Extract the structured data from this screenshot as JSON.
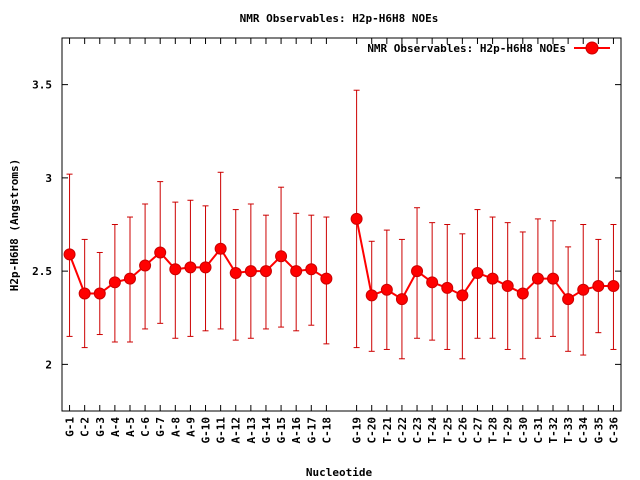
{
  "chart_data": {
    "type": "line",
    "title": "NMR Observables: H2p-H6H8 NOEs",
    "xlabel": "Nucleotide",
    "ylabel": "H2p-H6H8 (Angstroms)",
    "ylim": [
      1.75,
      3.75
    ],
    "yticks": [
      2,
      2.5,
      3,
      3.5
    ],
    "ytick_labels": [
      "2",
      "2.5",
      "3",
      "3.5"
    ],
    "grid": false,
    "legend_position": "top-right",
    "series_color": "#ff0000",
    "errorbar_color": "#cc0000",
    "categories": [
      "G-1",
      "C-2",
      "G-3",
      "A-4",
      "A-5",
      "C-6",
      "G-7",
      "A-8",
      "A-9",
      "G-10",
      "G-11",
      "A-12",
      "A-13",
      "G-14",
      "G-15",
      "A-16",
      "G-17",
      "C-18",
      "G-19",
      "C-20",
      "T-21",
      "C-22",
      "C-23",
      "T-24",
      "T-25",
      "C-26",
      "C-27",
      "T-28",
      "T-29",
      "C-30",
      "C-31",
      "T-32",
      "T-33",
      "C-34",
      "G-35",
      "C-36"
    ],
    "x_positions": [
      1,
      2,
      3,
      4,
      5,
      6,
      7,
      8,
      9,
      10,
      11,
      12,
      13,
      14,
      15,
      16,
      17,
      18,
      20,
      21,
      22,
      23,
      24,
      25,
      26,
      27,
      28,
      29,
      30,
      31,
      32,
      33,
      34,
      35,
      36,
      37
    ],
    "series": [
      {
        "name": "NMR Observables: H2p-H6H8 NOEs",
        "segments": [
          [
            0,
            17
          ],
          [
            18,
            35
          ]
        ],
        "values": [
          2.59,
          2.38,
          2.38,
          2.44,
          2.46,
          2.53,
          2.6,
          2.51,
          2.52,
          2.52,
          2.62,
          2.49,
          2.5,
          2.5,
          2.58,
          2.5,
          2.51,
          2.46,
          2.78,
          2.37,
          2.4,
          2.35,
          2.5,
          2.44,
          2.41,
          2.37,
          2.49,
          2.46,
          2.42,
          2.38,
          2.46,
          2.46,
          2.35,
          2.4,
          2.42,
          2.42
        ],
        "err_low": [
          2.15,
          2.09,
          2.16,
          2.12,
          2.12,
          2.19,
          2.22,
          2.14,
          2.15,
          2.18,
          2.19,
          2.13,
          2.14,
          2.19,
          2.2,
          2.18,
          2.21,
          2.11,
          2.09,
          2.07,
          2.08,
          2.03,
          2.14,
          2.13,
          2.08,
          2.03,
          2.14,
          2.14,
          2.08,
          2.03,
          2.14,
          2.15,
          2.07,
          2.05,
          2.17,
          2.08
        ],
        "err_high": [
          3.02,
          2.67,
          2.6,
          2.75,
          2.79,
          2.86,
          2.98,
          2.87,
          2.88,
          2.85,
          3.03,
          2.83,
          2.86,
          2.8,
          2.95,
          2.81,
          2.8,
          2.79,
          3.47,
          2.66,
          2.72,
          2.67,
          2.84,
          2.76,
          2.75,
          2.7,
          2.83,
          2.79,
          2.76,
          2.71,
          2.78,
          2.77,
          2.63,
          2.75,
          2.67,
          2.75
        ]
      }
    ]
  }
}
